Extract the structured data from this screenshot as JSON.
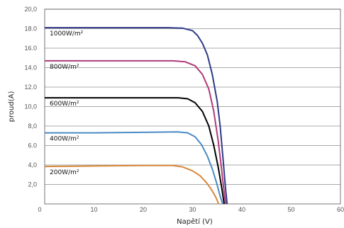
{
  "chart_data": {
    "type": "line",
    "xlabel": "Napětí (V)",
    "ylabel": "proud(A)",
    "xlim": [
      0,
      60
    ],
    "ylim": [
      0,
      20
    ],
    "x_ticks": [
      "0",
      "10",
      "20",
      "30",
      "40",
      "50",
      "60"
    ],
    "y_ticks": [
      "2,0",
      "4,0",
      "6.0",
      "8,0",
      "10,0",
      "12.0",
      "14.0",
      "16.0",
      "18.0",
      "20,0"
    ],
    "grid": "horizontal",
    "series": [
      {
        "name": "1000W/m²",
        "color": "#2e3a87",
        "points": [
          [
            0,
            18.1
          ],
          [
            10,
            18.1
          ],
          [
            20,
            18.1
          ],
          [
            25,
            18.1
          ],
          [
            28,
            18.05
          ],
          [
            30,
            17.8
          ],
          [
            31,
            17.3
          ],
          [
            32,
            16.5
          ],
          [
            33,
            15.3
          ],
          [
            34,
            13.3
          ],
          [
            35,
            10.5
          ],
          [
            35.6,
            8.0
          ],
          [
            36.2,
            4.5
          ],
          [
            36.7,
            1.5
          ],
          [
            37,
            0
          ]
        ]
      },
      {
        "name": "800W/m²",
        "color": "#b03a7a",
        "points": [
          [
            0,
            14.7
          ],
          [
            10,
            14.7
          ],
          [
            20,
            14.7
          ],
          [
            26,
            14.7
          ],
          [
            28.5,
            14.6
          ],
          [
            30.5,
            14.2
          ],
          [
            32,
            13.3
          ],
          [
            33.3,
            11.8
          ],
          [
            34.3,
            9.5
          ],
          [
            35.2,
            6.5
          ],
          [
            35.9,
            3.5
          ],
          [
            36.4,
            1.2
          ],
          [
            36.7,
            0
          ]
        ]
      },
      {
        "name": "600W/m²",
        "color": "#000000",
        "points": [
          [
            0,
            10.9
          ],
          [
            10,
            10.9
          ],
          [
            20,
            10.9
          ],
          [
            27,
            10.9
          ],
          [
            29,
            10.8
          ],
          [
            30.5,
            10.4
          ],
          [
            32,
            9.5
          ],
          [
            33.3,
            8.0
          ],
          [
            34.3,
            6.0
          ],
          [
            35.2,
            3.8
          ],
          [
            35.9,
            1.7
          ],
          [
            36.4,
            0
          ]
        ]
      },
      {
        "name": "400W/m²",
        "color": "#4a8ac4",
        "points": [
          [
            0,
            7.3
          ],
          [
            10,
            7.3
          ],
          [
            20,
            7.35
          ],
          [
            27,
            7.4
          ],
          [
            29,
            7.3
          ],
          [
            30.5,
            6.9
          ],
          [
            31.8,
            6.1
          ],
          [
            33,
            4.9
          ],
          [
            34,
            3.6
          ],
          [
            34.9,
            2.1
          ],
          [
            35.6,
            0.8
          ],
          [
            36.1,
            0
          ]
        ]
      },
      {
        "name": "200W/m²",
        "color": "#d9873a",
        "points": [
          [
            0,
            3.85
          ],
          [
            10,
            3.9
          ],
          [
            20,
            3.95
          ],
          [
            26,
            3.95
          ],
          [
            28,
            3.8
          ],
          [
            30,
            3.4
          ],
          [
            31.5,
            2.9
          ],
          [
            32.8,
            2.2
          ],
          [
            33.8,
            1.5
          ],
          [
            34.7,
            0.7
          ],
          [
            35.3,
            0
          ]
        ]
      }
    ]
  }
}
